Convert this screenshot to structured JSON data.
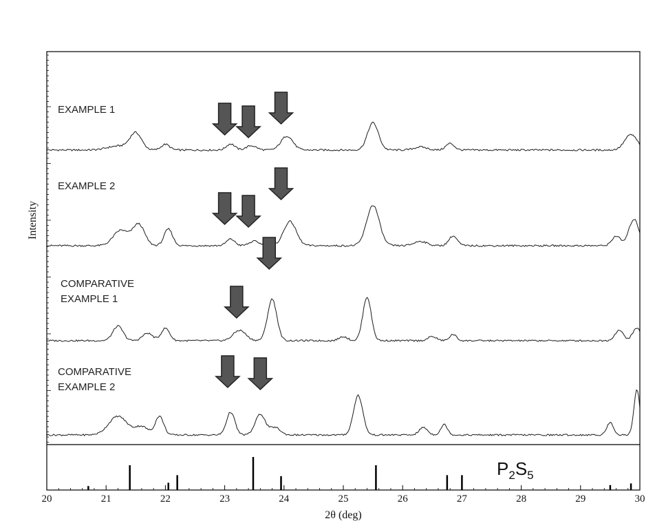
{
  "chart_data": {
    "type": "line",
    "xlabel": "2θ (deg)",
    "ylabel": "Intensity",
    "xlim": [
      20,
      30
    ],
    "x_ticks": [
      "20",
      "21",
      "22",
      "23",
      "24",
      "25",
      "26",
      "27",
      "28",
      "29",
      "30"
    ],
    "grid": false,
    "colors": {
      "trace": "#1a1a1a",
      "arrow": "#555555",
      "axis": "#000000"
    },
    "series": [
      {
        "name": "EXAMPLE 1",
        "label_lines": [
          "EXAMPLE 1"
        ],
        "base": 0.0,
        "peaks": [
          [
            21.2,
            0.09,
            0.25
          ],
          [
            21.5,
            0.38,
            0.14
          ],
          [
            22.0,
            0.13,
            0.1
          ],
          [
            23.1,
            0.14,
            0.1
          ],
          [
            23.45,
            0.1,
            0.12
          ],
          [
            24.05,
            0.32,
            0.14
          ],
          [
            25.5,
            0.62,
            0.13
          ],
          [
            26.3,
            0.07,
            0.15
          ],
          [
            26.8,
            0.15,
            0.1
          ],
          [
            29.85,
            0.35,
            0.15
          ]
        ],
        "arrows": [
          23.0,
          23.4,
          23.95
        ]
      },
      {
        "name": "EXAMPLE 2",
        "label_lines": [
          "EXAMPLE 2"
        ],
        "base": 0.0,
        "peaks": [
          [
            21.25,
            0.35,
            0.18
          ],
          [
            21.55,
            0.48,
            0.14
          ],
          [
            22.05,
            0.38,
            0.1
          ],
          [
            23.1,
            0.15,
            0.1
          ],
          [
            23.5,
            0.1,
            0.12
          ],
          [
            24.1,
            0.55,
            0.15
          ],
          [
            25.5,
            0.92,
            0.15
          ],
          [
            26.3,
            0.1,
            0.15
          ],
          [
            26.85,
            0.22,
            0.1
          ],
          [
            29.6,
            0.22,
            0.1
          ],
          [
            29.9,
            0.6,
            0.12
          ]
        ],
        "arrows": [
          23.0,
          23.4,
          23.95
        ]
      },
      {
        "name": "COMPARATIVE EXAMPLE 1",
        "label_lines": [
          "COMPARATIVE",
          "EXAMPLE 1"
        ],
        "base": 0.0,
        "peaks": [
          [
            21.2,
            0.35,
            0.12
          ],
          [
            21.7,
            0.18,
            0.12
          ],
          [
            22.0,
            0.3,
            0.1
          ],
          [
            23.25,
            0.25,
            0.15
          ],
          [
            23.8,
            1.0,
            0.11
          ],
          [
            25.0,
            0.1,
            0.1
          ],
          [
            25.4,
            1.05,
            0.1
          ],
          [
            26.5,
            0.1,
            0.1
          ],
          [
            26.85,
            0.15,
            0.08
          ],
          [
            29.65,
            0.25,
            0.1
          ],
          [
            29.95,
            0.3,
            0.1
          ]
        ],
        "arrows": [
          23.2,
          23.75
        ]
      },
      {
        "name": "COMPARATIVE EXAMPLE 2",
        "label_lines": [
          "COMPARATIVE",
          "EXAMPLE 2"
        ],
        "base": 0.0,
        "peaks": [
          [
            21.2,
            0.45,
            0.22
          ],
          [
            21.6,
            0.2,
            0.15
          ],
          [
            21.9,
            0.45,
            0.1
          ],
          [
            23.1,
            0.55,
            0.1
          ],
          [
            23.6,
            0.5,
            0.12
          ],
          [
            23.85,
            0.18,
            0.12
          ],
          [
            25.25,
            0.95,
            0.11
          ],
          [
            26.35,
            0.18,
            0.1
          ],
          [
            26.7,
            0.25,
            0.08
          ],
          [
            29.5,
            0.3,
            0.08
          ],
          [
            29.95,
            1.1,
            0.07
          ]
        ],
        "arrows": [
          23.05,
          23.6
        ]
      }
    ],
    "reference": {
      "label": "P2S5",
      "label_main": "P",
      "label_sub1": "2",
      "label_mid": "S",
      "label_sub2": "5",
      "lines": [
        [
          20.7,
          0.12
        ],
        [
          21.4,
          0.75
        ],
        [
          22.05,
          0.22
        ],
        [
          22.2,
          0.45
        ],
        [
          23.48,
          1.0
        ],
        [
          23.95,
          0.42
        ],
        [
          25.55,
          0.75
        ],
        [
          26.75,
          0.45
        ],
        [
          27.0,
          0.45
        ],
        [
          29.5,
          0.15
        ],
        [
          29.85,
          0.2
        ]
      ]
    }
  }
}
